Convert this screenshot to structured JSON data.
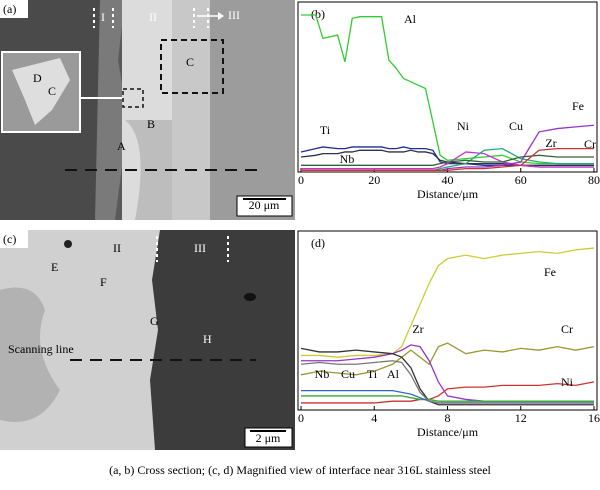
{
  "figure": {
    "panel_a": {
      "label": "(a)",
      "zones": [
        "I",
        "II",
        "III"
      ],
      "points": [
        "A",
        "B",
        "C",
        "D",
        "C"
      ],
      "scale": "20 μm"
    },
    "panel_c": {
      "label": "(c)",
      "zones": [
        "II",
        "III"
      ],
      "points": [
        "E",
        "F",
        "G",
        "H"
      ],
      "scan": "Scanning line",
      "scale": "2 μm"
    },
    "caption": "(a, b) Cross section; (c, d) Magnified view of interface near 316L stainless steel"
  },
  "chart_data": [
    {
      "type": "line",
      "panel": "(b)",
      "x_label": "Distance/μm",
      "xlim": [
        0,
        80
      ],
      "xticks": [
        0,
        20,
        40,
        60,
        80
      ],
      "ylim": [
        0,
        100
      ],
      "grid": false,
      "x": [
        0,
        4,
        6,
        10,
        12,
        14,
        16,
        22,
        24,
        26,
        28,
        30,
        32,
        34,
        36,
        38,
        40,
        45,
        50,
        55,
        60,
        65,
        70,
        75,
        80
      ],
      "series": [
        {
          "name": "Al",
          "color": "#33cc33",
          "values": [
            94,
            94,
            80,
            82,
            66,
            92,
            93,
            93,
            67,
            62,
            56,
            54,
            52,
            50,
            30,
            10,
            7,
            8,
            9,
            10,
            6,
            5,
            5,
            5,
            5
          ]
        },
        {
          "name": "Ti",
          "color": "#1f2f8f",
          "values": [
            12,
            14,
            15,
            14,
            14,
            15,
            15,
            15,
            14,
            14,
            15,
            14,
            14,
            14,
            13,
            6,
            5,
            5,
            4,
            4,
            4,
            3,
            3,
            3,
            3
          ]
        },
        {
          "name": "Nb",
          "color": "#2f2f4f",
          "values": [
            9,
            10,
            11,
            11,
            12,
            12,
            13,
            13,
            12,
            12,
            12,
            13,
            12,
            12,
            11,
            7,
            6,
            5,
            5,
            5,
            4,
            4,
            4,
            4,
            4
          ]
        },
        {
          "name": "Ni",
          "color": "#cc33cc",
          "values": [
            2,
            2,
            2,
            2,
            2,
            2,
            2,
            2,
            2,
            2,
            2,
            2,
            2,
            2,
            2,
            3,
            5,
            12,
            11,
            6,
            4,
            3,
            3,
            3,
            3
          ]
        },
        {
          "name": "Cu",
          "color": "#22aa77",
          "values": [
            1,
            1,
            1,
            1,
            1,
            1,
            1,
            1,
            1,
            1,
            1,
            1,
            1,
            1,
            1,
            2,
            3,
            5,
            13,
            14,
            8,
            6,
            5,
            5,
            5
          ]
        },
        {
          "name": "Fe",
          "color": "#9933cc",
          "values": [
            1,
            1,
            1,
            1,
            1,
            1,
            1,
            1,
            1,
            1,
            1,
            1,
            1,
            1,
            1,
            1,
            2,
            3,
            3,
            4,
            6,
            24,
            26,
            27,
            28
          ]
        },
        {
          "name": "Zr",
          "color": "#336633",
          "values": [
            4,
            4,
            4,
            4,
            4,
            4,
            4,
            4,
            4,
            4,
            4,
            4,
            4,
            4,
            4,
            5,
            6,
            7,
            6,
            6,
            9,
            10,
            9,
            9,
            9
          ]
        },
        {
          "name": "Cr",
          "color": "#cc3333",
          "values": [
            1,
            1,
            1,
            1,
            1,
            1,
            1,
            1,
            1,
            1,
            1,
            1,
            1,
            1,
            1,
            1,
            1,
            2,
            2,
            3,
            4,
            13,
            14,
            14,
            14
          ]
        }
      ]
    },
    {
      "type": "line",
      "panel": "(d)",
      "x_label": "Distance/μm",
      "xlim": [
        0,
        16
      ],
      "xticks": [
        0,
        4,
        8,
        12,
        16
      ],
      "ylim": [
        0,
        100
      ],
      "grid": false,
      "x": [
        0,
        1,
        2,
        3,
        4,
        5,
        5.5,
        6,
        6.5,
        7,
        7.5,
        8,
        9,
        10,
        11,
        12,
        13,
        14,
        15,
        16
      ],
      "series": [
        {
          "name": "Fe",
          "color": "#cccc33",
          "values": [
            31,
            31,
            30,
            31,
            31,
            32,
            36,
            48,
            60,
            72,
            82,
            86,
            88,
            86,
            88,
            89,
            90,
            89,
            91,
            92
          ]
        },
        {
          "name": "Cr",
          "color": "#999933",
          "values": [
            20,
            22,
            21,
            20,
            22,
            26,
            30,
            34,
            30,
            26,
            36,
            38,
            32,
            34,
            33,
            35,
            34,
            36,
            34,
            36
          ]
        },
        {
          "name": "Zr",
          "color": "#9933cc",
          "values": [
            28,
            28,
            28,
            29,
            30,
            32,
            34,
            37,
            36,
            28,
            16,
            8,
            6,
            5,
            5,
            5,
            5,
            5,
            5,
            5
          ]
        },
        {
          "name": "Ni",
          "color": "#cc3333",
          "values": [
            4,
            4,
            4,
            4,
            4,
            5,
            5,
            5,
            6,
            6,
            8,
            12,
            13,
            13,
            14,
            14,
            14,
            15,
            14,
            16
          ]
        },
        {
          "name": "Nb",
          "color": "#333333",
          "values": [
            35,
            33,
            33,
            34,
            33,
            32,
            30,
            24,
            12,
            5,
            3,
            3,
            3,
            3,
            3,
            3,
            3,
            3,
            3,
            3
          ]
        },
        {
          "name": "Cu",
          "color": "#33aa33",
          "values": [
            8,
            8,
            8,
            8,
            8,
            8,
            8,
            7,
            6,
            6,
            5,
            5,
            5,
            5,
            5,
            5,
            5,
            5,
            5,
            5
          ]
        },
        {
          "name": "Ti",
          "color": "#3366cc",
          "values": [
            11,
            11,
            11,
            11,
            11,
            11,
            10,
            9,
            7,
            5,
            4,
            4,
            4,
            4,
            4,
            4,
            4,
            4,
            4,
            4
          ]
        },
        {
          "name": "Al",
          "color": "#777777",
          "values": [
            26,
            27,
            26,
            26,
            27,
            28,
            27,
            20,
            10,
            5,
            4,
            4,
            4,
            4,
            4,
            4,
            4,
            4,
            4,
            4
          ]
        }
      ]
    }
  ]
}
